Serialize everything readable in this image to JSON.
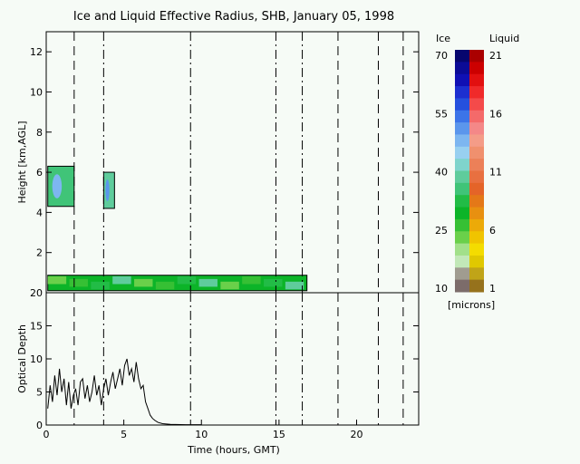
{
  "chart_data": [
    {
      "type": "heatmap",
      "title": "Ice and Liquid Effective Radius, SHB, January 05, 1998",
      "ylabel": "Height [km,AGL]",
      "xlim": [
        0,
        24
      ],
      "ylim": [
        0,
        13
      ],
      "yticks": [
        2,
        4,
        6,
        8,
        10,
        12
      ],
      "vlines": {
        "dashed": [
          1.8,
          18.8,
          21.4,
          23
        ],
        "dash_dot": [
          3.7,
          9.3,
          14.8,
          16.5
        ]
      },
      "ice_cloud_regions": [
        {
          "x": [
            0.1,
            1.8
          ],
          "y": [
            4.3,
            6.3
          ],
          "radius_microns": 35
        },
        {
          "x": [
            3.7,
            4.4
          ],
          "y": [
            4.2,
            6.0
          ],
          "radius_microns": 38
        }
      ],
      "liquid_cloud_layer": {
        "x": [
          0.1,
          16.8
        ],
        "y": [
          0.1,
          1.2
        ],
        "radius_microns": 8
      },
      "colorbar": {
        "ice_label": "Ice",
        "liquid_label": "Liquid",
        "units_label": "[microns]",
        "ice_ticks": [
          "70",
          "55",
          "40",
          "25",
          "10"
        ],
        "liquid_ticks": [
          "21",
          "16",
          "11",
          "6",
          "1"
        ],
        "ice_colors": [
          "#06066e",
          "#0b0b96",
          "#1010b4",
          "#1c2fd0",
          "#2550de",
          "#3c74e8",
          "#5b96ec",
          "#7db6f0",
          "#98d0f0",
          "#7fd4cc",
          "#5fcc9c",
          "#40c478",
          "#22bc46",
          "#0cb428",
          "#36c034",
          "#6ad04a",
          "#a2e08a",
          "#c2e8b8",
          "#a09c90",
          "#7c6c6a"
        ],
        "liquid_colors": [
          "#aa0000",
          "#cc0000",
          "#e21010",
          "#f02a2a",
          "#f44a4a",
          "#f46a6a",
          "#f48888",
          "#f49c88",
          "#f0906e",
          "#ec8058",
          "#e87040",
          "#e46428",
          "#e47818",
          "#e89010",
          "#ecaa08",
          "#f0c400",
          "#f4dc00",
          "#e0c800",
          "#c0a418",
          "#96721c"
        ]
      }
    },
    {
      "type": "line",
      "ylabel": "Optical Depth",
      "xlabel": "Time (hours, GMT)",
      "xlim": [
        0,
        24
      ],
      "ylim": [
        0,
        20
      ],
      "xticks": [
        0,
        5,
        10,
        15,
        20
      ],
      "yticks": [
        0,
        5,
        10,
        15,
        20
      ],
      "x": [
        0.1,
        0.25,
        0.4,
        0.55,
        0.7,
        0.85,
        1.0,
        1.15,
        1.3,
        1.45,
        1.6,
        1.75,
        1.9,
        2.05,
        2.2,
        2.35,
        2.5,
        2.65,
        2.8,
        2.95,
        3.1,
        3.25,
        3.4,
        3.55,
        3.7,
        3.85,
        4.0,
        4.15,
        4.3,
        4.45,
        4.6,
        4.75,
        4.9,
        5.05,
        5.2,
        5.35,
        5.5,
        5.65,
        5.8,
        5.95,
        6.1,
        6.25,
        6.4,
        6.55,
        6.7,
        6.85,
        7.0,
        7.2,
        7.5,
        8.0,
        9.0,
        10.0
      ],
      "y": [
        2.5,
        6.0,
        3.5,
        7.5,
        4.5,
        8.5,
        5.0,
        7.0,
        3.0,
        6.5,
        2.5,
        4.5,
        5.5,
        3.0,
        6.5,
        7.0,
        4.0,
        6.0,
        3.5,
        5.0,
        7.5,
        4.5,
        6.0,
        3.0,
        5.5,
        7.0,
        4.5,
        6.5,
        8.0,
        5.5,
        7.0,
        8.5,
        6.0,
        9.0,
        10.0,
        7.5,
        8.5,
        6.5,
        9.5,
        7.0,
        5.5,
        6.0,
        3.5,
        2.5,
        1.5,
        1.0,
        0.7,
        0.4,
        0.2,
        0.1,
        0.05,
        0.05
      ]
    }
  ]
}
